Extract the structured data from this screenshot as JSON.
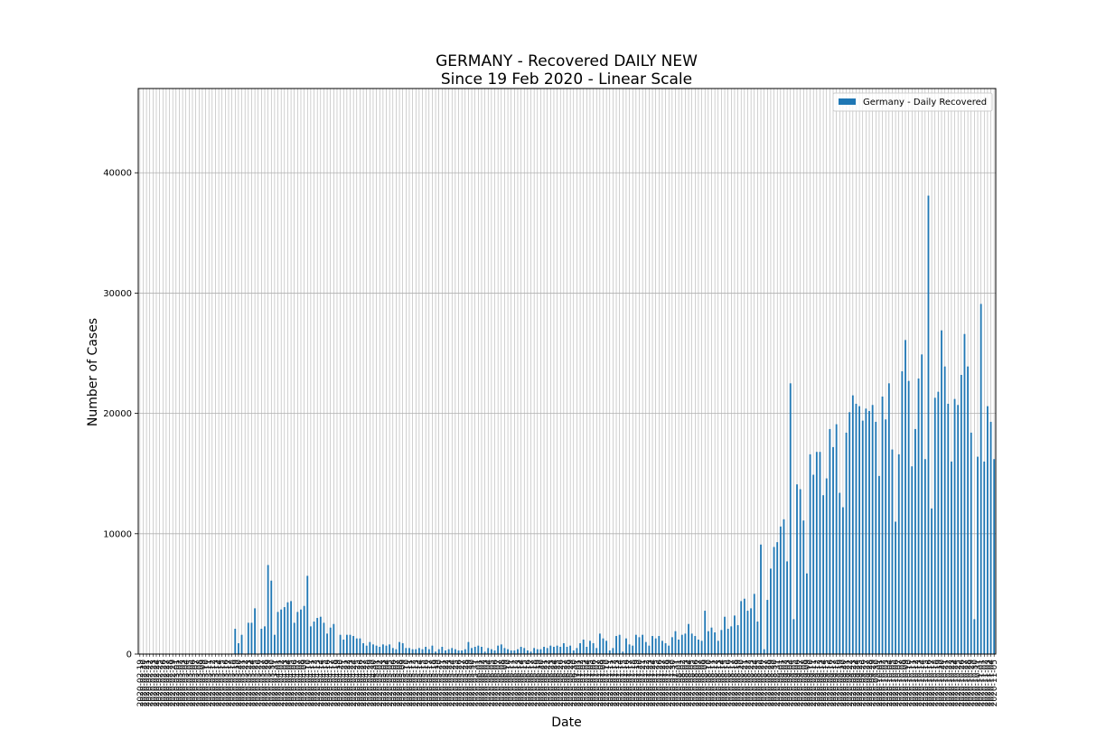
{
  "chart_data": {
    "type": "bar",
    "title_line1": "GERMANY - Recovered DAILY NEW",
    "title_line2": "Since 19 Feb 2020 - Linear Scale",
    "xlabel": "Date",
    "ylabel": "Number of Cases",
    "ylim": [
      0,
      47000
    ],
    "yticks": [
      0,
      10000,
      20000,
      30000,
      40000
    ],
    "grid": true,
    "legend_position": "top-right",
    "color": "#1f77b4",
    "series": [
      {
        "name": "Germany - Daily Recovered",
        "start_date": "2020-02-19",
        "values": [
          0,
          0,
          0,
          0,
          0,
          0,
          0,
          0,
          0,
          0,
          0,
          0,
          0,
          0,
          0,
          0,
          0,
          0,
          0,
          0,
          0,
          0,
          0,
          0,
          0,
          0,
          0,
          0,
          0,
          2100,
          900,
          1600,
          0,
          2600,
          2600,
          3800,
          0,
          2100,
          2300,
          7400,
          6100,
          1600,
          3500,
          3700,
          3900,
          4300,
          4400,
          2600,
          3500,
          3700,
          4000,
          6500,
          2300,
          2700,
          3000,
          3100,
          2600,
          1700,
          2200,
          2500,
          0,
          1600,
          1200,
          1600,
          1600,
          1500,
          1300,
          1300,
          900,
          700,
          1000,
          800,
          700,
          600,
          800,
          700,
          800,
          500,
          400,
          1000,
          900,
          500,
          500,
          400,
          400,
          500,
          400,
          600,
          400,
          700,
          200,
          400,
          600,
          300,
          400,
          500,
          400,
          300,
          300,
          400,
          1000,
          500,
          600,
          700,
          600,
          200,
          500,
          400,
          300,
          700,
          800,
          500,
          400,
          300,
          300,
          400,
          600,
          500,
          300,
          200,
          500,
          400,
          400,
          600,
          500,
          700,
          600,
          700,
          600,
          900,
          600,
          700,
          300,
          500,
          900,
          1200,
          600,
          1100,
          900,
          500,
          1700,
          1300,
          1100,
          300,
          500,
          1500,
          1600,
          200,
          1300,
          800,
          700,
          1600,
          1400,
          1600,
          1000,
          700,
          1500,
          1300,
          1500,
          1100,
          900,
          700,
          1400,
          1900,
          1200,
          1600,
          1700,
          2500,
          1700,
          1500,
          1200,
          1100,
          3600,
          1900,
          2200,
          1800,
          1100,
          2000,
          3100,
          2100,
          2300,
          3200,
          2400,
          4400,
          4600,
          3600,
          3800,
          5000,
          2700,
          9100,
          400,
          4500,
          7100,
          8900,
          9300,
          10600,
          11200,
          7700,
          22500,
          2900,
          14100,
          13700,
          11100,
          6700,
          16600,
          14900,
          16800,
          16800,
          13200,
          14600,
          18700,
          17200,
          19100,
          13400,
          12200,
          18400,
          20100,
          21500,
          20800,
          20600,
          19400,
          20400,
          20200,
          20700,
          19300,
          14800,
          21400,
          19500,
          22500,
          17000,
          11000,
          16600,
          23500,
          26100,
          22700,
          15600,
          18700,
          22900,
          24900,
          16200,
          38100,
          12100,
          21300,
          21800,
          26900,
          23900,
          20800,
          16000,
          21200,
          20700,
          23200,
          26600,
          23900,
          18400,
          2900,
          16400,
          29100,
          16000,
          20600,
          19300,
          16200
        ]
      }
    ]
  }
}
